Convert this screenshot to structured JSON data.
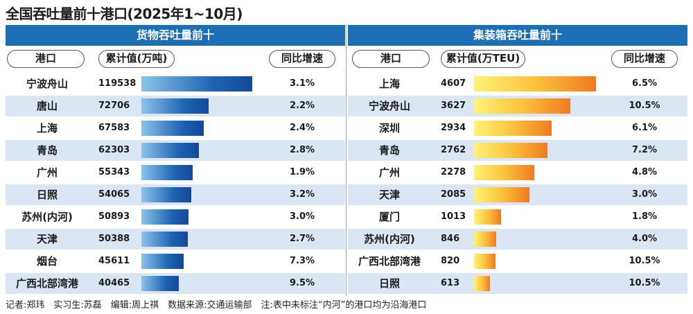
{
  "title": "全国吞吐量前十港口(2025年1~10月)",
  "footer": "记者:郑玮　实习生:苏磊　编辑:周上祺　数据来源:交通运输部　注:表中未标注“内河”的港口均为沿海港口",
  "colors": {
    "banner": "#1c6fb5",
    "row_alt": "#dbe6f4",
    "cargo_bar": "#1e63b2",
    "container_bar": "#f39a2c"
  },
  "chart_data": [
    {
      "type": "bar",
      "title": "货物吞吐量前十",
      "columns": [
        "港口",
        "累计值(万吨)",
        "同比增速"
      ],
      "categories": [
        "宁波舟山",
        "唐山",
        "上海",
        "青岛",
        "广州",
        "日照",
        "苏州(内河)",
        "天津",
        "烟台",
        "广西北部湾港"
      ],
      "values": [
        119538,
        72706,
        67583,
        62303,
        55343,
        54065,
        50893,
        50388,
        45611,
        40465
      ],
      "growth": [
        "3.1%",
        "2.2%",
        "2.4%",
        "2.8%",
        "1.9%",
        "3.2%",
        "3.0%",
        "2.7%",
        "7.3%",
        "9.5%"
      ],
      "xlim": [
        0,
        119538
      ]
    },
    {
      "type": "bar",
      "title": "集装箱吞吐量前十",
      "columns": [
        "港口",
        "累计值(万TEU)",
        "同比增速"
      ],
      "categories": [
        "上海",
        "宁波舟山",
        "深圳",
        "青岛",
        "广州",
        "天津",
        "厦门",
        "苏州(内河)",
        "广西北部湾港",
        "日照"
      ],
      "values": [
        4607,
        3627,
        2934,
        2762,
        2278,
        2085,
        1013,
        846,
        820,
        613
      ],
      "growth": [
        "6.5%",
        "10.5%",
        "6.1%",
        "7.2%",
        "4.8%",
        "3.0%",
        "1.8%",
        "4.0%",
        "10.5%",
        "10.5%"
      ],
      "xlim": [
        0,
        4607
      ]
    }
  ]
}
